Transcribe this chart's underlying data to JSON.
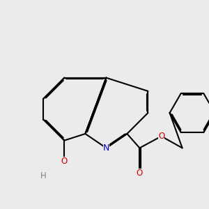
{
  "background_color": "#ebebeb",
  "bond_color": "#000000",
  "bond_width": 1.5,
  "atom_colors": {
    "N": "#0000cc",
    "O": "#cc0000",
    "H": "#808080"
  },
  "font_size": 8.5,
  "fig_width": 3.0,
  "fig_height": 3.0,
  "dpi": 100
}
